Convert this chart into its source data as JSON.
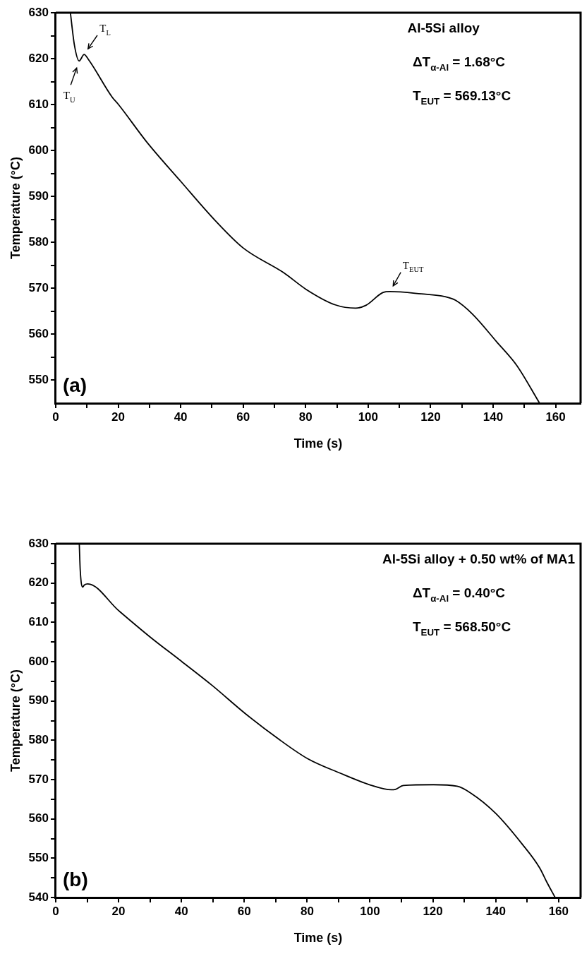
{
  "chart_data": [
    {
      "type": "line",
      "title": "(a)",
      "xlabel": "Time (s)",
      "ylabel": "Temperature (°C)",
      "series": [
        {
          "color": "#000000",
          "x": [
            4.7,
            6.0,
            7.5,
            9.1,
            10.4,
            18.1,
            20,
            29.1,
            40,
            51.0,
            60,
            73,
            80.1,
            89.5,
            96.0,
            99.3,
            104.8,
            107,
            117,
            124.6,
            128,
            133.4,
            141.1,
            147.6,
            154.8
          ],
          "values": [
            630,
            622.9,
            619.5,
            620.9,
            619.9,
            611.6,
            610.1,
            601.9,
            593.3,
            584.8,
            578.8,
            573.4,
            569.8,
            566.4,
            565.7,
            566.3,
            569.1,
            569.3,
            568.8,
            568.2,
            567.4,
            564.4,
            558.4,
            553.2,
            545.1
          ]
        }
      ],
      "xlim": [
        0,
        168
      ],
      "ylim": [
        545,
        630
      ],
      "xticks": [
        0,
        {
          "value": 10,
          "label": null
        },
        20,
        {
          "value": 30,
          "label": null
        },
        40,
        {
          "value": 50,
          "label": null
        },
        60,
        {
          "value": 70,
          "label": null
        },
        80,
        {
          "value": 90,
          "label": null
        },
        100,
        {
          "value": 110,
          "label": null
        },
        120,
        {
          "value": 130,
          "label": null
        },
        140,
        {
          "value": 150,
          "label": null
        },
        160
      ],
      "yticks": [
        550,
        {
          "value": 555,
          "label": null
        },
        560,
        {
          "value": 565,
          "label": null
        },
        570,
        {
          "value": 575,
          "label": null
        },
        580,
        {
          "value": 585,
          "label": null
        },
        590,
        {
          "value": 595,
          "label": null
        },
        600,
        {
          "value": 605,
          "label": null
        },
        610,
        {
          "value": 615,
          "label": null
        },
        620,
        {
          "value": 625,
          "label": null
        },
        630
      ],
      "annotations": [
        "Al-5Si alloy",
        "ΔT$_{α-Al}$ = 1.68°C",
        "T$_{EUT}$ = 569.13°C",
        {
          "text": "T$_{U}$",
          "x": 7.5,
          "y": 619.5
        },
        {
          "text": "T$_{L}$",
          "x": 9.1,
          "y": 620.9
        },
        {
          "text": "T$_{EUT}$",
          "x": 107,
          "y": 569.3
        }
      ],
      "grid": false,
      "legend": false,
      "marker": "none",
      "line_style": "solid"
    },
    {
      "type": "line",
      "title": "(b)",
      "xlabel": "Time (s)",
      "ylabel": "Temperature (°C)",
      "series": [
        {
          "color": "#000000",
          "x": [
            7.5,
            7.8,
            8.6,
            9.1,
            10.2,
            20,
            30,
            40,
            49.7,
            60.3,
            70.6,
            80.2,
            90.3,
            100.2,
            106.8,
            108.1,
            110.6,
            120.2,
            127.7,
            132,
            140,
            148.5,
            154,
            156.2,
            158.9
          ],
          "values": [
            630,
            623.3,
            619.0,
            619.5,
            619.8,
            613.0,
            606.3,
            600.1,
            594.0,
            586.8,
            580.5,
            575.3,
            571.7,
            568.6,
            567.4,
            567.5,
            568.5,
            568.7,
            568.3,
            566.6,
            561.4,
            553.5,
            547.5,
            544,
            540
          ]
        }
      ],
      "xlim": [
        0,
        167
      ],
      "ylim": [
        540,
        630
      ],
      "xticks": [
        0,
        {
          "value": 10,
          "label": null
        },
        20,
        {
          "value": 30,
          "label": null
        },
        40,
        {
          "value": 50,
          "label": null
        },
        60,
        {
          "value": 70,
          "label": null
        },
        80,
        {
          "value": 90,
          "label": null
        },
        100,
        {
          "value": 110,
          "label": null
        },
        120,
        {
          "value": 130,
          "label": null
        },
        140,
        {
          "value": 150,
          "label": null
        },
        160
      ],
      "yticks": [
        540,
        {
          "value": 545,
          "label": null
        },
        550,
        {
          "value": 555,
          "label": null
        },
        560,
        {
          "value": 565,
          "label": null
        },
        570,
        {
          "value": 575,
          "label": null
        },
        580,
        {
          "value": 585,
          "label": null
        },
        590,
        {
          "value": 595,
          "label": null
        },
        600,
        {
          "value": 605,
          "label": null
        },
        610,
        {
          "value": 615,
          "label": null
        },
        620,
        {
          "value": 625,
          "label": null
        },
        630
      ],
      "annotations": [
        "Al-5Si alloy + 0.50 wt% of MA1",
        "ΔT$_{α-Al}$ = 0.40°C",
        "T$_{EUT}$ = 568.50°C"
      ],
      "grid": false,
      "legend": false,
      "marker": "none",
      "line_style": "solid"
    }
  ]
}
